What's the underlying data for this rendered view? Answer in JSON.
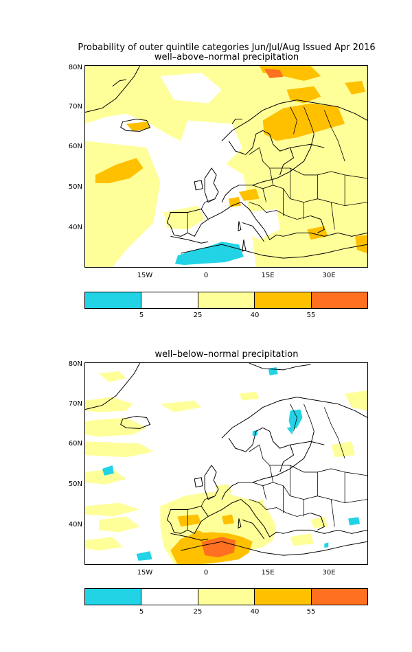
{
  "figure": {
    "title": "Probability of outer quintile categories Jun/Jul/Aug Issued Apr 2016"
  },
  "panels": [
    {
      "subtitle": "well–above–normal precipitation",
      "lat_ticks": [
        "80N",
        "70N",
        "60N",
        "50N",
        "40N"
      ],
      "lon_ticks": [
        "15W",
        "0",
        "15E",
        "30E"
      ]
    },
    {
      "subtitle": "well–below–normal precipitation",
      "lat_ticks": [
        "80N",
        "70N",
        "60N",
        "50N",
        "40N"
      ],
      "lon_ticks": [
        "15W",
        "0",
        "15E",
        "30E"
      ]
    }
  ],
  "colorbar": {
    "boundary_labels": [
      "5",
      "25",
      "40",
      "55"
    ],
    "colors": [
      "#22d3e6",
      "#ffffff",
      "#ffff99",
      "#ffc000",
      "#ff7020"
    ]
  }
}
